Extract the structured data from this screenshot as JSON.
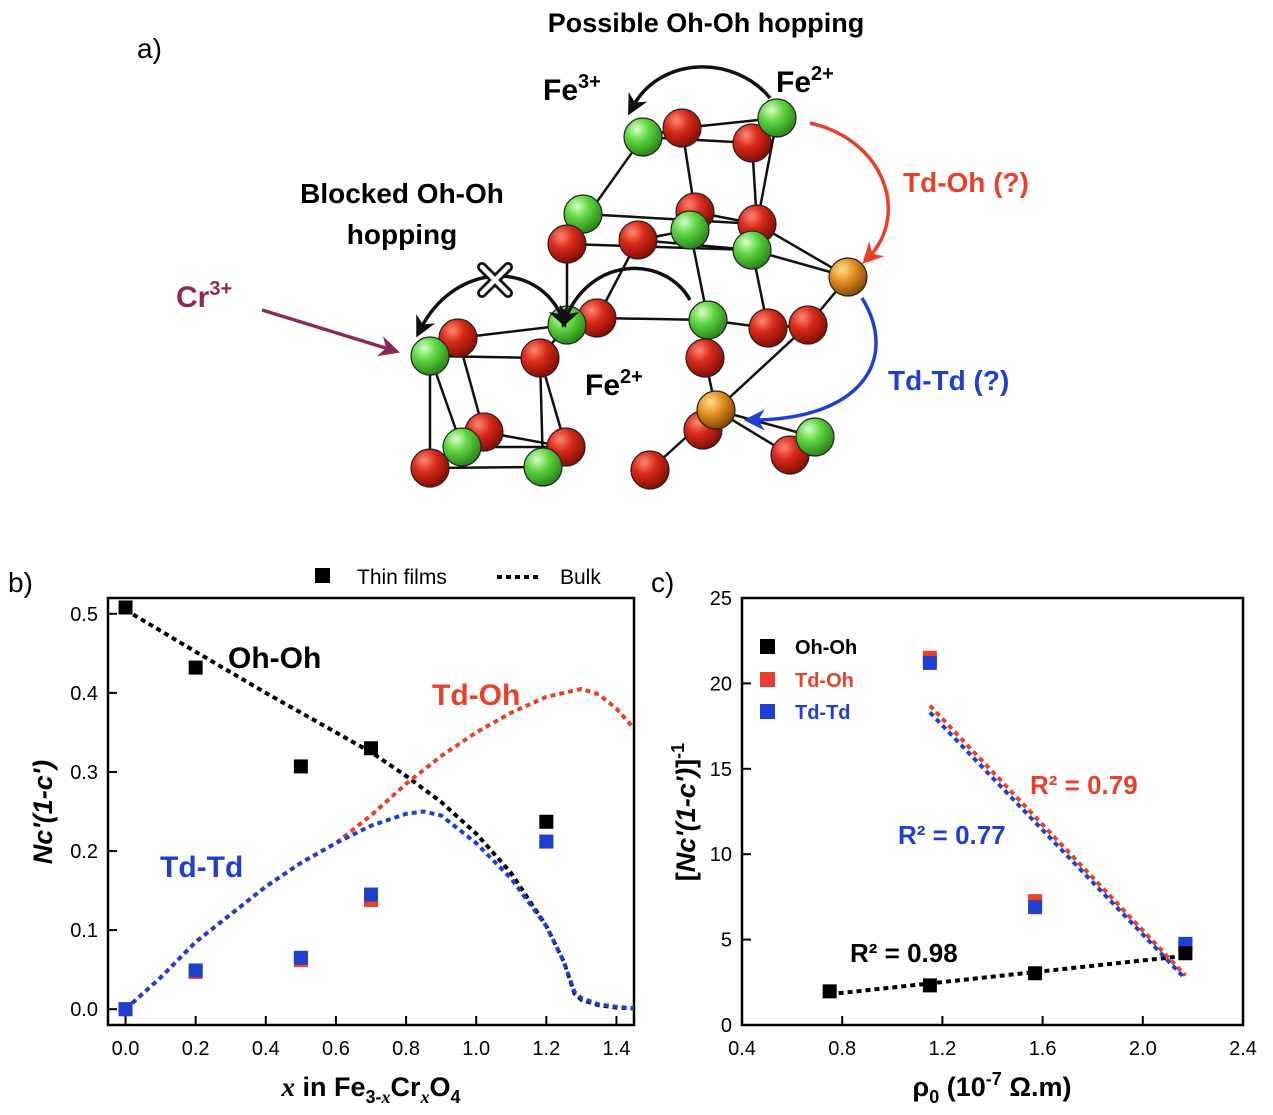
{
  "panel_a": {
    "label": "a)",
    "possible_hopping": "Possible Oh-Oh hopping",
    "blocked_hopping_line1": "Blocked Oh-Oh",
    "blocked_hopping_line2": "hopping",
    "fe3_base": "Fe",
    "fe3_sup": "3+",
    "fe2_base": "Fe",
    "fe2_sup": "2+",
    "fe2_mid_base": "Fe",
    "fe2_mid_sup": "2+",
    "cr3_base": "Cr",
    "cr3_sup": "3+",
    "td_oh": "Td-Oh (?)",
    "td_td": "Td-Td (?)",
    "colors": {
      "oxygen": "#d42a1c",
      "octahedral": "#5bd13e",
      "tetrahedral": "#e08a1e",
      "cr_arrow": "#8b2a5a",
      "td_oh_arrow": "#e8402a",
      "td_td_arrow": "#1f3fd0"
    }
  },
  "panel_b": {
    "label": "b)",
    "legend_points": "Thin films",
    "legend_line": "Bulk",
    "ylabel_main": "Nc'(1-c')",
    "xlabel_var": "x",
    "xlabel_mid": " in Fe",
    "xlabel_sub1": "3-",
    "xlabel_sub1_var": "x",
    "xlabel_cr": "Cr",
    "xlabel_sub2_var": "x",
    "xlabel_o": "O",
    "xlabel_sub3": "4",
    "label_ohoh": "Oh-Oh",
    "label_tdoh": "Td-Oh",
    "label_tdtd": "Td-Td"
  },
  "panel_c": {
    "label": "c)",
    "legend": [
      "Oh-Oh",
      "Td-Oh",
      "Td-Td"
    ],
    "ylabel_open": "[",
    "ylabel_main": "Nc'(1-c')",
    "ylabel_close": "]",
    "ylabel_sup": "-1",
    "xlabel_base": "ρ",
    "xlabel_sub": "0",
    "xlabel_paren_open": " (10",
    "xlabel_sup": "-7",
    "xlabel_unit": " Ω.m)",
    "r2_tdoh": "R² = 0.79",
    "r2_tdtd": "R² = 0.77",
    "r2_ohoh": "R² = 0.98"
  },
  "chart_data": [
    {
      "type": "scatter",
      "xlabel": "x in Fe3-xCrxO4",
      "ylabel": "Nc'(1-c')",
      "xlim": [
        -0.05,
        1.45
      ],
      "ylim": [
        -0.02,
        0.52
      ],
      "xticks": [
        0.0,
        0.2,
        0.4,
        0.6,
        0.8,
        1.0,
        1.2,
        1.4
      ],
      "yticks": [
        0.0,
        0.1,
        0.2,
        0.3,
        0.4,
        0.5
      ],
      "legend": "top",
      "series": [
        {
          "name": "Oh-Oh",
          "kind": "points",
          "color": "#000000",
          "x": [
            0.0,
            0.2,
            0.5,
            0.7,
            1.2
          ],
          "y": [
            0.508,
            0.432,
            0.307,
            0.33,
            0.237
          ]
        },
        {
          "name": "Td-Oh",
          "kind": "points",
          "color": "#e8402a",
          "x": [
            0.0,
            0.2,
            0.5,
            0.7,
            1.2
          ],
          "y": [
            0.0,
            0.047,
            0.062,
            0.138,
            0.212
          ]
        },
        {
          "name": "Td-Td",
          "kind": "points",
          "color": "#1f3fd0",
          "x": [
            0.0,
            0.2,
            0.5,
            0.7,
            1.2
          ],
          "y": [
            0.0,
            0.049,
            0.065,
            0.145,
            0.212
          ]
        },
        {
          "name": "Oh-Oh",
          "kind": "bulk",
          "color": "#000000",
          "x": [
            0.0,
            0.2,
            0.4,
            0.6,
            0.7,
            0.8,
            0.9,
            1.0,
            1.1,
            1.2,
            1.25,
            1.28,
            1.3,
            1.35,
            1.4,
            1.45
          ],
          "y": [
            0.505,
            0.452,
            0.4,
            0.35,
            0.325,
            0.295,
            0.262,
            0.222,
            0.172,
            0.105,
            0.06,
            0.02,
            0.012,
            0.005,
            0.002,
            0.001
          ]
        },
        {
          "name": "Td-Oh",
          "kind": "bulk",
          "color": "#e8402a",
          "x": [
            0.0,
            0.1,
            0.2,
            0.3,
            0.4,
            0.5,
            0.6,
            0.7,
            0.8,
            0.9,
            1.0,
            1.1,
            1.2,
            1.3,
            1.35,
            1.4,
            1.45
          ],
          "y": [
            0.0,
            0.04,
            0.085,
            0.12,
            0.155,
            0.185,
            0.21,
            0.245,
            0.285,
            0.32,
            0.35,
            0.375,
            0.395,
            0.405,
            0.398,
            0.38,
            0.355
          ]
        },
        {
          "name": "Td-Td",
          "kind": "bulk",
          "color": "#1f3fd0",
          "x": [
            0.0,
            0.1,
            0.2,
            0.3,
            0.4,
            0.5,
            0.6,
            0.7,
            0.8,
            0.85,
            0.9,
            1.0,
            1.1,
            1.2,
            1.25,
            1.28,
            1.3,
            1.35,
            1.4,
            1.45
          ],
          "y": [
            0.0,
            0.04,
            0.085,
            0.12,
            0.155,
            0.185,
            0.21,
            0.232,
            0.247,
            0.25,
            0.245,
            0.21,
            0.165,
            0.105,
            0.06,
            0.022,
            0.014,
            0.006,
            0.003,
            0.001
          ]
        }
      ]
    },
    {
      "type": "scatter",
      "xlabel": "ρ0 (10-7 Ω.m)",
      "ylabel": "[Nc'(1-c')]-1",
      "xlim": [
        0.4,
        2.4
      ],
      "ylim": [
        0,
        25
      ],
      "xticks": [
        0.4,
        0.8,
        1.2,
        1.6,
        2.0,
        2.4
      ],
      "yticks": [
        0,
        5,
        10,
        15,
        20,
        25
      ],
      "legend": "top-left",
      "series": [
        {
          "name": "Oh-Oh",
          "kind": "points",
          "color": "#000000",
          "x": [
            0.75,
            1.15,
            1.57,
            2.17
          ],
          "y": [
            1.97,
            2.32,
            3.03,
            4.2
          ]
        },
        {
          "name": "Td-Oh",
          "kind": "points",
          "color": "#e8402a",
          "x": [
            1.15,
            1.57,
            2.17
          ],
          "y": [
            21.5,
            7.25,
            4.6
          ]
        },
        {
          "name": "Td-Td",
          "kind": "points",
          "color": "#1f3fd0",
          "x": [
            1.15,
            1.57,
            2.17
          ],
          "y": [
            21.2,
            6.9,
            4.75
          ]
        },
        {
          "name": "Oh-Oh",
          "kind": "fit",
          "color": "#000000",
          "x": [
            0.75,
            2.17
          ],
          "y": [
            1.8,
            4.05
          ]
        },
        {
          "name": "Td-Oh",
          "kind": "fit",
          "color": "#e8402a",
          "x": [
            1.15,
            2.17
          ],
          "y": [
            18.7,
            2.9
          ]
        },
        {
          "name": "Td-Td",
          "kind": "fit",
          "color": "#1f3fd0",
          "x": [
            1.15,
            2.17
          ],
          "y": [
            18.3,
            2.7
          ]
        }
      ]
    }
  ]
}
